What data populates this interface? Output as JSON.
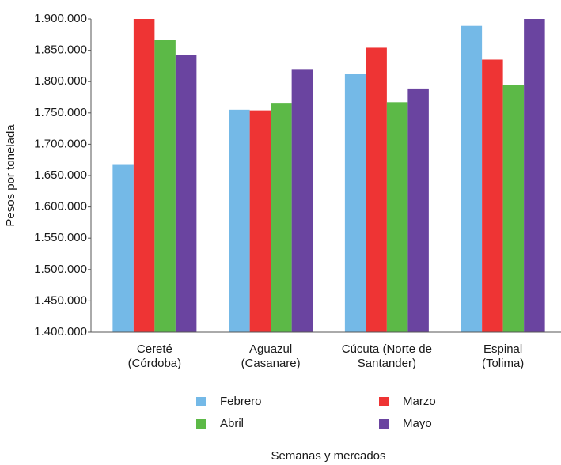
{
  "chart_data": {
    "type": "bar",
    "y_label": "Pesos por tonelada",
    "x_label": "Semanas y mercados",
    "categories": [
      "Cereté\n(Córdoba)",
      "Aguazul\n(Casanare)",
      "Cúcuta (Norte de\nSantander)",
      "Espinal\n(Tolima)"
    ],
    "series": [
      {
        "name": "Febrero",
        "color": "#74b9e7",
        "values": [
          1667000,
          1755000,
          1812000,
          1889000
        ]
      },
      {
        "name": "Marzo",
        "color": "#ee3434",
        "values": [
          1900000,
          1754000,
          1854000,
          1835000
        ]
      },
      {
        "name": "Abril",
        "color": "#5cb947",
        "values": [
          1866000,
          1766000,
          1767000,
          1795000
        ]
      },
      {
        "name": "Mayo",
        "color": "#6a44a0",
        "values": [
          1843000,
          1820000,
          1789000,
          1900000
        ]
      }
    ],
    "ylim": [
      1400000,
      1900000
    ],
    "yticks": [
      {
        "value": 1400000,
        "label": "1.400.000"
      },
      {
        "value": 1450000,
        "label": "1.450.000"
      },
      {
        "value": 1500000,
        "label": "1.500.000"
      },
      {
        "value": 1550000,
        "label": "1.550.000"
      },
      {
        "value": 1600000,
        "label": "1.600.000"
      },
      {
        "value": 1650000,
        "label": "1.650.000"
      },
      {
        "value": 1700000,
        "label": "1.700.000"
      },
      {
        "value": 1750000,
        "label": "1.750.000"
      },
      {
        "value": 1800000,
        "label": "1.800.000"
      },
      {
        "value": 1850000,
        "label": "1.850.000"
      },
      {
        "value": 1900000,
        "label": "1.900.000"
      }
    ],
    "grid": false
  }
}
